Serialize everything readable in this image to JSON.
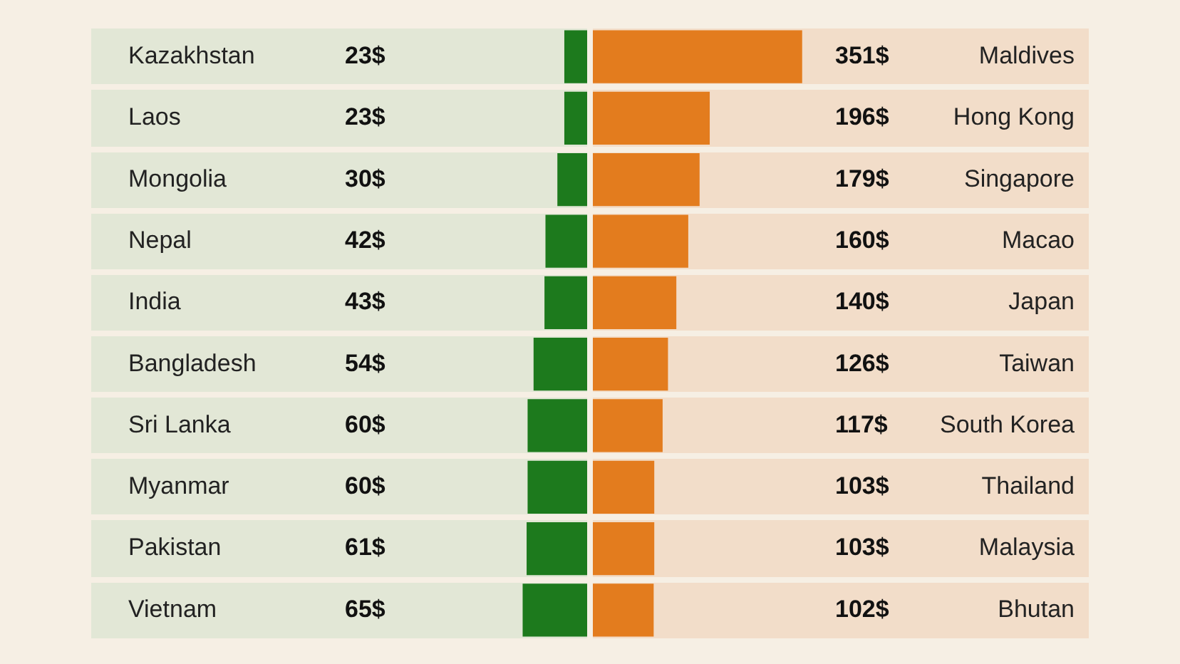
{
  "chart_data": [
    {
      "type": "bar",
      "orientation": "horizontal",
      "categories": [
        "Kazakhstan",
        "Laos",
        "Mongolia",
        "Nepal",
        "India",
        "Bangladesh",
        "Sri Lanka",
        "Myanmar",
        "Pakistan",
        "Vietnam"
      ],
      "values": [
        23,
        23,
        30,
        42,
        43,
        54,
        60,
        60,
        61,
        65
      ],
      "value_labels": [
        "23$",
        "23$",
        "30$",
        "42$",
        "43$",
        "54$",
        "60$",
        "60$",
        "61$",
        "65$"
      ],
      "color": "#1d7a1d",
      "tick_labels": "y"
    },
    {
      "type": "bar",
      "orientation": "horizontal",
      "categories": [
        "Maldives",
        "Hong Kong",
        "Singapore",
        "Macao",
        "Japan",
        "Taiwan",
        "South Korea",
        "Thailand",
        "Malaysia",
        "Bhutan"
      ],
      "values": [
        351,
        196,
        179,
        160,
        140,
        126,
        117,
        103,
        103,
        102
      ],
      "value_labels": [
        "351$",
        "196$",
        "179$",
        "160$",
        "140$",
        "126$",
        "117$",
        "103$",
        "103$",
        "102$"
      ],
      "color": "#e37c1e",
      "tick_labels": "y"
    }
  ]
}
